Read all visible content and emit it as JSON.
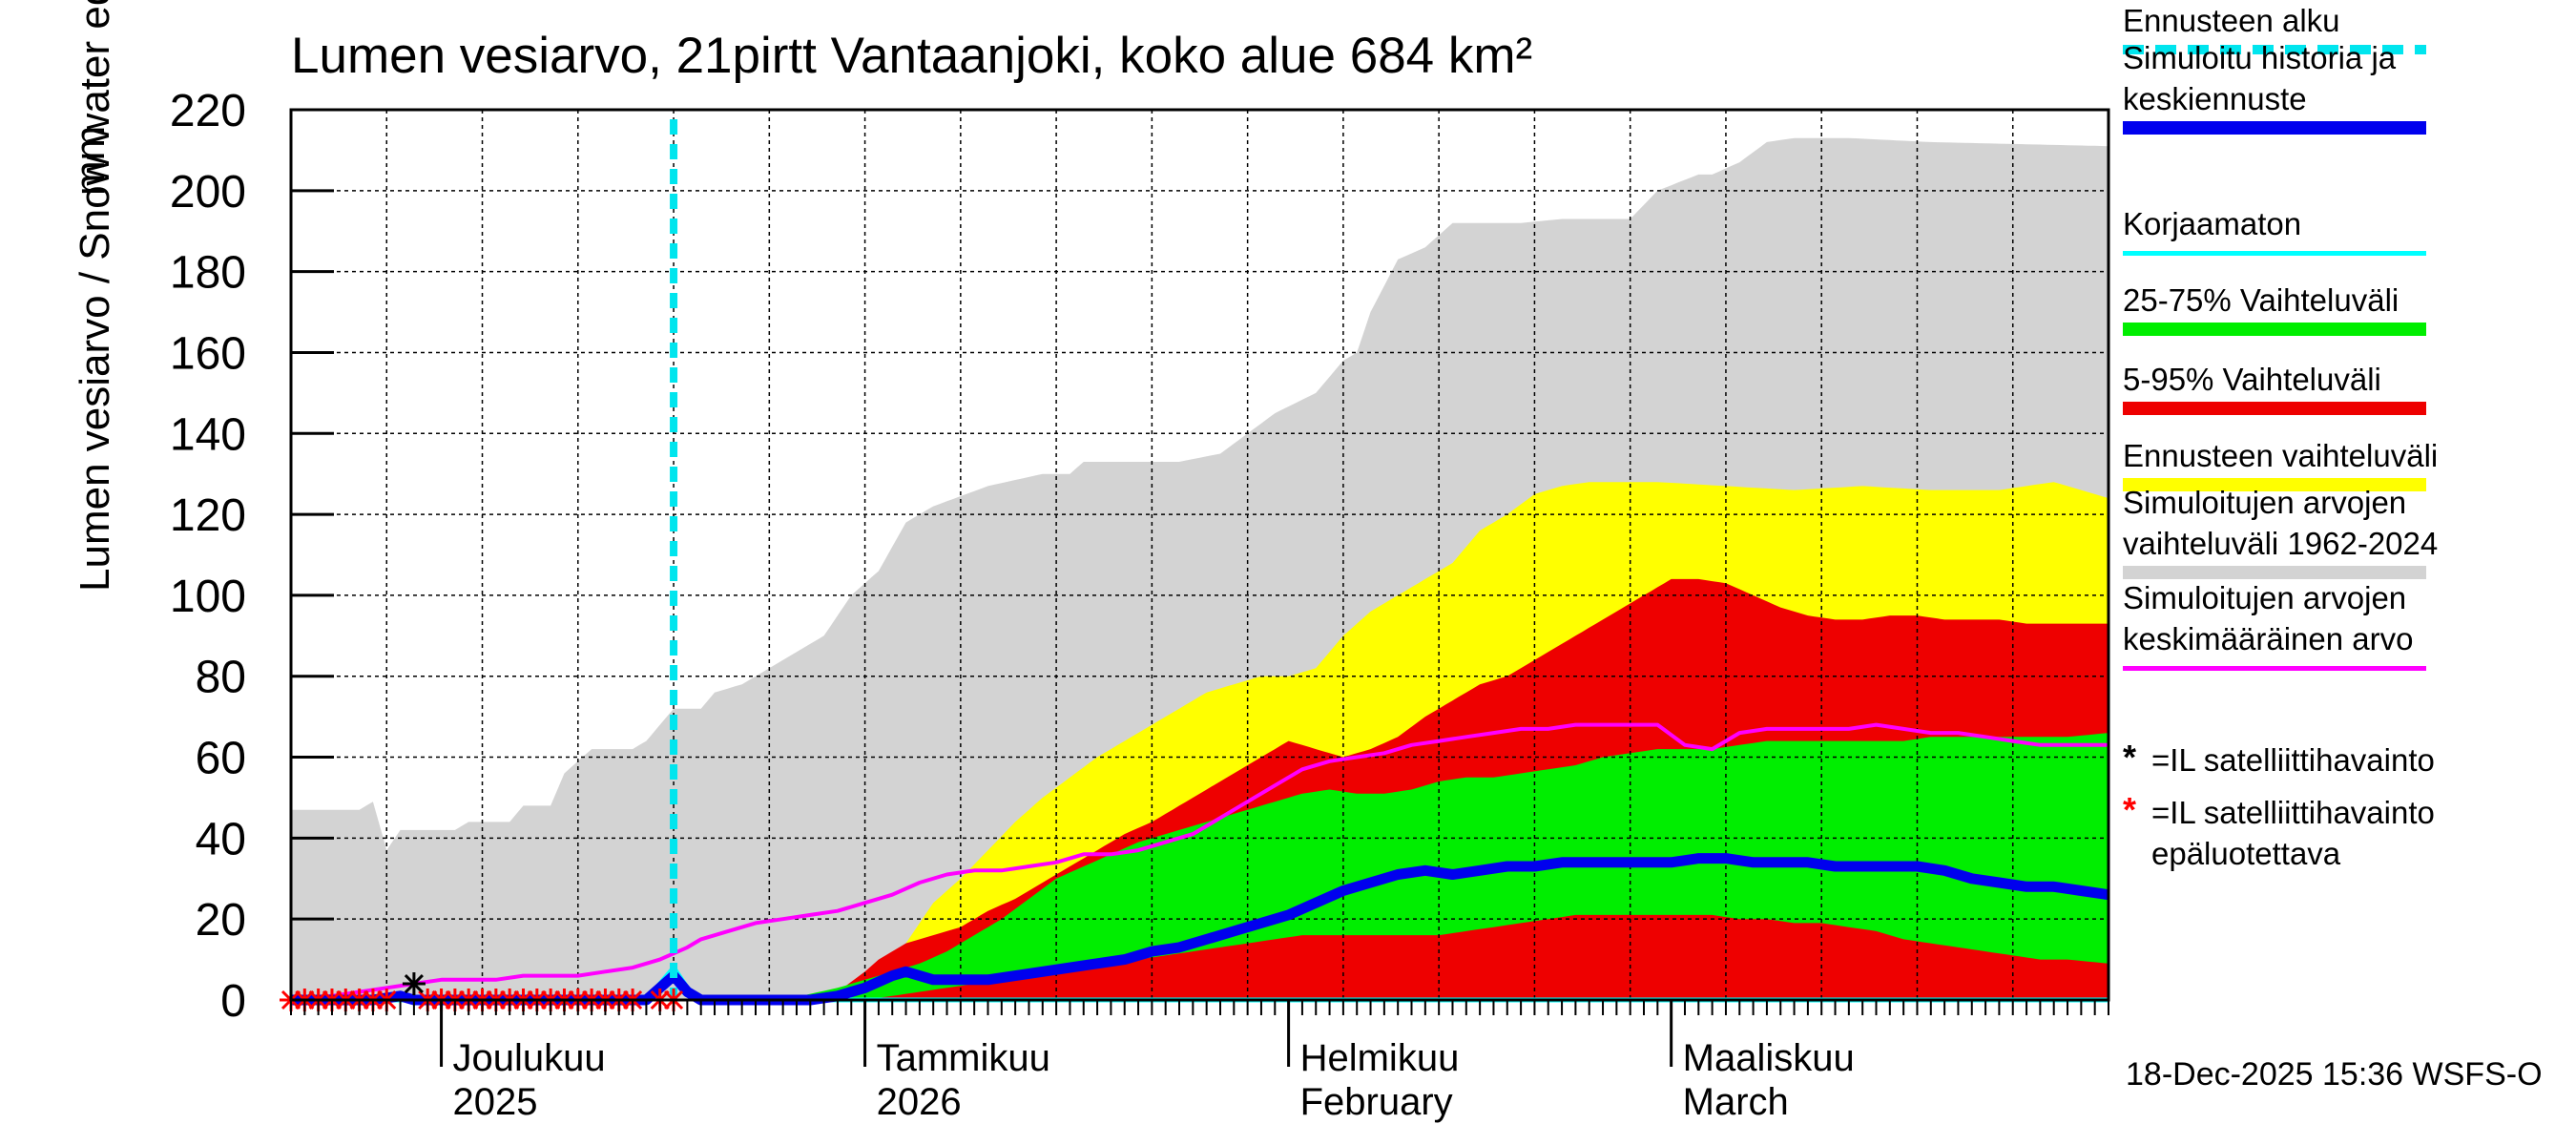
{
  "title": "Lumen vesiarvo, 21pirtt Vantaanjoki, koko alue 684 km²",
  "ylabel": "Lumen vesiarvo / Snow water equiv.",
  "yunit": "mm",
  "footer": "18-Dec-2025 15:36 WSFS-O",
  "colors": {
    "forecast_start": "#00e5ee",
    "mean_forecast": "#0000ee",
    "uncorrected": "#00ffff",
    "range_25_75": "#00ee00",
    "range_5_95": "#ee0000",
    "forecast_range": "#ffff00",
    "hist_range": "#d3d3d3",
    "hist_mean": "#ff00ff",
    "sat_obs": "#000000",
    "sat_obs_unreliable": "#ff0000"
  },
  "legend": [
    {
      "key": "forecast_start",
      "lines": [
        "Ennusteen alku"
      ]
    },
    {
      "key": "mean_forecast",
      "lines": [
        "Simuloitu historia ja",
        "keskiennuste"
      ]
    },
    {
      "key": "uncorrected",
      "lines": [
        "Korjaamaton"
      ]
    },
    {
      "key": "range_25_75",
      "lines": [
        "25-75% Vaihteluväli"
      ]
    },
    {
      "key": "range_5_95",
      "lines": [
        "5-95% Vaihteluväli"
      ]
    },
    {
      "key": "forecast_range",
      "lines": [
        "Ennusteen vaihteluväli"
      ]
    },
    {
      "key": "hist_range",
      "lines": [
        "Simuloitujen arvojen",
        "vaihteluväli 1962-2024"
      ]
    },
    {
      "key": "hist_mean",
      "lines": [
        "Simuloitujen arvojen",
        "keskimääräinen arvo"
      ]
    },
    {
      "key": "sat_obs",
      "symbol": "*",
      "lines": [
        "=IL satelliittihavainto"
      ]
    },
    {
      "key": "sat_obs_unreliable",
      "symbol": "*",
      "lines": [
        "=IL satelliittihavainto",
        "epäluotettava"
      ]
    }
  ],
  "chart_data": {
    "type": "area",
    "title": "Lumen vesiarvo, 21pirtt Vantaanjoki, koko alue 684 km²",
    "ylabel": "Lumen vesiarvo / Snow water equiv. mm",
    "ylim": [
      0,
      220
    ],
    "yticks": [
      0,
      20,
      40,
      60,
      80,
      100,
      120,
      140,
      160,
      180,
      200,
      220
    ],
    "x_unit": "day index (0 = 20-Nov-2025)",
    "xlim": [
      0,
      133
    ],
    "month_ticks": [
      {
        "x": 11,
        "label_fi": "Joulukuu",
        "label_en": "2025"
      },
      {
        "x": 42,
        "label_fi": "Tammikuu",
        "label_en": "2026"
      },
      {
        "x": 73,
        "label_fi": "Helmikuu",
        "label_en": "February"
      },
      {
        "x": 101,
        "label_fi": "Maaliskuu",
        "label_en": "March"
      }
    ],
    "forecast_start_x": 28,
    "hist_range_upper": [
      [
        0,
        47
      ],
      [
        5,
        47
      ],
      [
        6,
        49
      ],
      [
        7,
        37
      ],
      [
        8,
        42
      ],
      [
        12,
        42
      ],
      [
        13,
        44
      ],
      [
        16,
        44
      ],
      [
        17,
        48
      ],
      [
        19,
        48
      ],
      [
        20,
        56
      ],
      [
        22,
        62
      ],
      [
        25,
        62
      ],
      [
        26,
        64
      ],
      [
        28,
        72
      ],
      [
        30,
        72
      ],
      [
        31,
        76
      ],
      [
        33,
        78
      ],
      [
        35,
        82
      ],
      [
        37,
        86
      ],
      [
        39,
        90
      ],
      [
        41,
        100
      ],
      [
        43,
        106
      ],
      [
        45,
        118
      ],
      [
        47,
        122
      ],
      [
        51,
        127
      ],
      [
        55,
        130
      ],
      [
        57,
        130
      ],
      [
        58,
        133
      ],
      [
        65,
        133
      ],
      [
        68,
        135
      ],
      [
        70,
        140
      ],
      [
        72,
        145
      ],
      [
        75,
        150
      ],
      [
        77,
        158
      ],
      [
        78,
        160
      ],
      [
        79,
        170
      ],
      [
        81,
        183
      ],
      [
        83,
        186
      ],
      [
        85,
        192
      ],
      [
        86,
        192
      ],
      [
        90,
        192
      ],
      [
        93,
        193
      ],
      [
        98,
        193
      ],
      [
        100,
        200
      ],
      [
        103,
        204
      ],
      [
        104,
        204
      ],
      [
        106,
        207
      ],
      [
        108,
        212
      ],
      [
        110,
        213
      ],
      [
        114,
        213
      ],
      [
        120,
        212
      ],
      [
        133,
        211
      ]
    ],
    "forecast_upper": [
      [
        30,
        0
      ],
      [
        40,
        0
      ],
      [
        43,
        5
      ],
      [
        45,
        14
      ],
      [
        47,
        24
      ],
      [
        49,
        30
      ],
      [
        51,
        37
      ],
      [
        53,
        44
      ],
      [
        55,
        50
      ],
      [
        57,
        55
      ],
      [
        59,
        60
      ],
      [
        61,
        64
      ],
      [
        63,
        68
      ],
      [
        65,
        72
      ],
      [
        67,
        76
      ],
      [
        69,
        78
      ],
      [
        71,
        80
      ],
      [
        73,
        80
      ],
      [
        75,
        82
      ],
      [
        77,
        90
      ],
      [
        79,
        96
      ],
      [
        81,
        100
      ],
      [
        83,
        104
      ],
      [
        85,
        108
      ],
      [
        87,
        116
      ],
      [
        89,
        120
      ],
      [
        91,
        125
      ],
      [
        93,
        127
      ],
      [
        95,
        128
      ],
      [
        100,
        128
      ],
      [
        105,
        127
      ],
      [
        110,
        126
      ],
      [
        115,
        127
      ],
      [
        120,
        126
      ],
      [
        125,
        126
      ],
      [
        129,
        128
      ],
      [
        133,
        124
      ]
    ],
    "p95_upper": [
      [
        30,
        0
      ],
      [
        36,
        0
      ],
      [
        40,
        2
      ],
      [
        42,
        7
      ],
      [
        43,
        10
      ],
      [
        45,
        14
      ],
      [
        47,
        16
      ],
      [
        49,
        18
      ],
      [
        51,
        22
      ],
      [
        53,
        25
      ],
      [
        55,
        29
      ],
      [
        57,
        33
      ],
      [
        59,
        37
      ],
      [
        61,
        41
      ],
      [
        63,
        44
      ],
      [
        65,
        48
      ],
      [
        67,
        52
      ],
      [
        69,
        56
      ],
      [
        71,
        60
      ],
      [
        73,
        64
      ],
      [
        75,
        62
      ],
      [
        77,
        60
      ],
      [
        79,
        62
      ],
      [
        81,
        65
      ],
      [
        83,
        70
      ],
      [
        85,
        74
      ],
      [
        87,
        78
      ],
      [
        89,
        80
      ],
      [
        91,
        84
      ],
      [
        93,
        88
      ],
      [
        95,
        92
      ],
      [
        97,
        96
      ],
      [
        99,
        100
      ],
      [
        101,
        104
      ],
      [
        103,
        104
      ],
      [
        105,
        103
      ],
      [
        107,
        100
      ],
      [
        109,
        97
      ],
      [
        111,
        95
      ],
      [
        113,
        94
      ],
      [
        115,
        94
      ],
      [
        117,
        95
      ],
      [
        119,
        95
      ],
      [
        121,
        94
      ],
      [
        123,
        94
      ],
      [
        125,
        94
      ],
      [
        127,
        93
      ],
      [
        129,
        93
      ],
      [
        131,
        93
      ],
      [
        133,
        93
      ]
    ],
    "p75_upper": [
      [
        30,
        0
      ],
      [
        36,
        0
      ],
      [
        40,
        3
      ],
      [
        42,
        5
      ],
      [
        44,
        7
      ],
      [
        46,
        9
      ],
      [
        48,
        12
      ],
      [
        50,
        16
      ],
      [
        52,
        20
      ],
      [
        54,
        25
      ],
      [
        56,
        30
      ],
      [
        58,
        33
      ],
      [
        60,
        36
      ],
      [
        62,
        39
      ],
      [
        64,
        41
      ],
      [
        66,
        43
      ],
      [
        68,
        45
      ],
      [
        70,
        47
      ],
      [
        72,
        49
      ],
      [
        74,
        51
      ],
      [
        76,
        52
      ],
      [
        78,
        51
      ],
      [
        80,
        51
      ],
      [
        82,
        52
      ],
      [
        84,
        54
      ],
      [
        86,
        55
      ],
      [
        88,
        55
      ],
      [
        90,
        56
      ],
      [
        92,
        57
      ],
      [
        94,
        58
      ],
      [
        96,
        60
      ],
      [
        98,
        61
      ],
      [
        100,
        62
      ],
      [
        102,
        62
      ],
      [
        104,
        62
      ],
      [
        106,
        63
      ],
      [
        108,
        64
      ],
      [
        110,
        64
      ],
      [
        112,
        64
      ],
      [
        114,
        64
      ],
      [
        116,
        64
      ],
      [
        118,
        64
      ],
      [
        120,
        65
      ],
      [
        122,
        65
      ],
      [
        124,
        65
      ],
      [
        126,
        65
      ],
      [
        128,
        65
      ],
      [
        130,
        65
      ],
      [
        133,
        66
      ]
    ],
    "p25_lower": [
      [
        30,
        0
      ],
      [
        42,
        0
      ],
      [
        44,
        1
      ],
      [
        46,
        2
      ],
      [
        48,
        3
      ],
      [
        50,
        4
      ],
      [
        52,
        5
      ],
      [
        54,
        6
      ],
      [
        56,
        7
      ],
      [
        58,
        8
      ],
      [
        60,
        9
      ],
      [
        62,
        10
      ],
      [
        64,
        11
      ],
      [
        66,
        12
      ],
      [
        68,
        13
      ],
      [
        70,
        14
      ],
      [
        72,
        15
      ],
      [
        74,
        16
      ],
      [
        76,
        16
      ],
      [
        78,
        16
      ],
      [
        80,
        16
      ],
      [
        82,
        16
      ],
      [
        84,
        16
      ],
      [
        86,
        17
      ],
      [
        88,
        18
      ],
      [
        90,
        19
      ],
      [
        92,
        20
      ],
      [
        94,
        21
      ],
      [
        96,
        21
      ],
      [
        98,
        21
      ],
      [
        100,
        21
      ],
      [
        102,
        21
      ],
      [
        104,
        21
      ],
      [
        106,
        20
      ],
      [
        108,
        20
      ],
      [
        110,
        19
      ],
      [
        112,
        19
      ],
      [
        114,
        18
      ],
      [
        116,
        17
      ],
      [
        118,
        15
      ],
      [
        120,
        14
      ],
      [
        122,
        13
      ],
      [
        124,
        12
      ],
      [
        126,
        11
      ],
      [
        128,
        10
      ],
      [
        130,
        10
      ],
      [
        133,
        9
      ]
    ],
    "p5_lower": [
      [
        30,
        0
      ],
      [
        133,
        0
      ]
    ],
    "hist_mean": [
      [
        0,
        0
      ],
      [
        3,
        1
      ],
      [
        5,
        2
      ],
      [
        7,
        3
      ],
      [
        9,
        4
      ],
      [
        11,
        5
      ],
      [
        13,
        5
      ],
      [
        15,
        5
      ],
      [
        17,
        6
      ],
      [
        19,
        6
      ],
      [
        21,
        6
      ],
      [
        23,
        7
      ],
      [
        25,
        8
      ],
      [
        27,
        10
      ],
      [
        29,
        13
      ],
      [
        30,
        15
      ],
      [
        32,
        17
      ],
      [
        34,
        19
      ],
      [
        36,
        20
      ],
      [
        38,
        21
      ],
      [
        40,
        22
      ],
      [
        42,
        24
      ],
      [
        44,
        26
      ],
      [
        46,
        29
      ],
      [
        48,
        31
      ],
      [
        50,
        32
      ],
      [
        52,
        32
      ],
      [
        54,
        33
      ],
      [
        56,
        34
      ],
      [
        58,
        36
      ],
      [
        60,
        36
      ],
      [
        62,
        37
      ],
      [
        64,
        39
      ],
      [
        66,
        41
      ],
      [
        68,
        45
      ],
      [
        70,
        49
      ],
      [
        72,
        53
      ],
      [
        74,
        57
      ],
      [
        76,
        59
      ],
      [
        78,
        60
      ],
      [
        80,
        61
      ],
      [
        82,
        63
      ],
      [
        84,
        64
      ],
      [
        86,
        65
      ],
      [
        88,
        66
      ],
      [
        90,
        67
      ],
      [
        92,
        67
      ],
      [
        94,
        68
      ],
      [
        96,
        68
      ],
      [
        98,
        68
      ],
      [
        100,
        68
      ],
      [
        102,
        63
      ],
      [
        104,
        62
      ],
      [
        106,
        66
      ],
      [
        108,
        67
      ],
      [
        110,
        67
      ],
      [
        112,
        67
      ],
      [
        114,
        67
      ],
      [
        116,
        68
      ],
      [
        118,
        67
      ],
      [
        120,
        66
      ],
      [
        122,
        66
      ],
      [
        124,
        65
      ],
      [
        126,
        64
      ],
      [
        128,
        63
      ],
      [
        130,
        63
      ],
      [
        133,
        63
      ]
    ],
    "mean_forecast": [
      [
        0,
        0
      ],
      [
        6,
        0
      ],
      [
        8,
        1
      ],
      [
        9,
        0
      ],
      [
        12,
        0
      ],
      [
        26,
        0
      ],
      [
        27,
        3
      ],
      [
        28,
        6
      ],
      [
        29,
        2
      ],
      [
        30,
        0
      ],
      [
        38,
        0
      ],
      [
        40,
        1
      ],
      [
        42,
        3
      ],
      [
        44,
        6
      ],
      [
        45,
        7
      ],
      [
        47,
        5
      ],
      [
        49,
        5
      ],
      [
        51,
        5
      ],
      [
        53,
        6
      ],
      [
        55,
        7
      ],
      [
        57,
        8
      ],
      [
        59,
        9
      ],
      [
        61,
        10
      ],
      [
        63,
        12
      ],
      [
        65,
        13
      ],
      [
        67,
        15
      ],
      [
        69,
        17
      ],
      [
        71,
        19
      ],
      [
        73,
        21
      ],
      [
        75,
        24
      ],
      [
        77,
        27
      ],
      [
        79,
        29
      ],
      [
        81,
        31
      ],
      [
        83,
        32
      ],
      [
        85,
        31
      ],
      [
        87,
        32
      ],
      [
        89,
        33
      ],
      [
        91,
        33
      ],
      [
        93,
        34
      ],
      [
        95,
        34
      ],
      [
        97,
        34
      ],
      [
        99,
        34
      ],
      [
        101,
        34
      ],
      [
        103,
        35
      ],
      [
        105,
        35
      ],
      [
        107,
        34
      ],
      [
        109,
        34
      ],
      [
        111,
        34
      ],
      [
        113,
        33
      ],
      [
        115,
        33
      ],
      [
        117,
        33
      ],
      [
        119,
        33
      ],
      [
        121,
        32
      ],
      [
        123,
        30
      ],
      [
        125,
        29
      ],
      [
        127,
        28
      ],
      [
        129,
        28
      ],
      [
        131,
        27
      ],
      [
        133,
        26
      ]
    ],
    "uncorrected": [
      [
        0,
        0
      ],
      [
        26,
        0
      ],
      [
        27,
        4
      ],
      [
        28,
        8
      ],
      [
        29,
        3
      ],
      [
        30,
        0
      ],
      [
        133,
        0
      ]
    ],
    "sat_obs": [
      [
        9,
        4
      ]
    ],
    "sat_obs_unreliable": [
      [
        0,
        0
      ],
      [
        1,
        0
      ],
      [
        2,
        0
      ],
      [
        3,
        0
      ],
      [
        4,
        0
      ],
      [
        5,
        0
      ],
      [
        6,
        0
      ],
      [
        7,
        0
      ],
      [
        10,
        0
      ],
      [
        11,
        0
      ],
      [
        12,
        0
      ],
      [
        13,
        0
      ],
      [
        14,
        0
      ],
      [
        15,
        0
      ],
      [
        16,
        0
      ],
      [
        17,
        0
      ],
      [
        18,
        0
      ],
      [
        19,
        0
      ],
      [
        20,
        0
      ],
      [
        21,
        0
      ],
      [
        22,
        0
      ],
      [
        23,
        0
      ],
      [
        24,
        0
      ],
      [
        25,
        0
      ],
      [
        27,
        0
      ],
      [
        28,
        0
      ]
    ]
  }
}
